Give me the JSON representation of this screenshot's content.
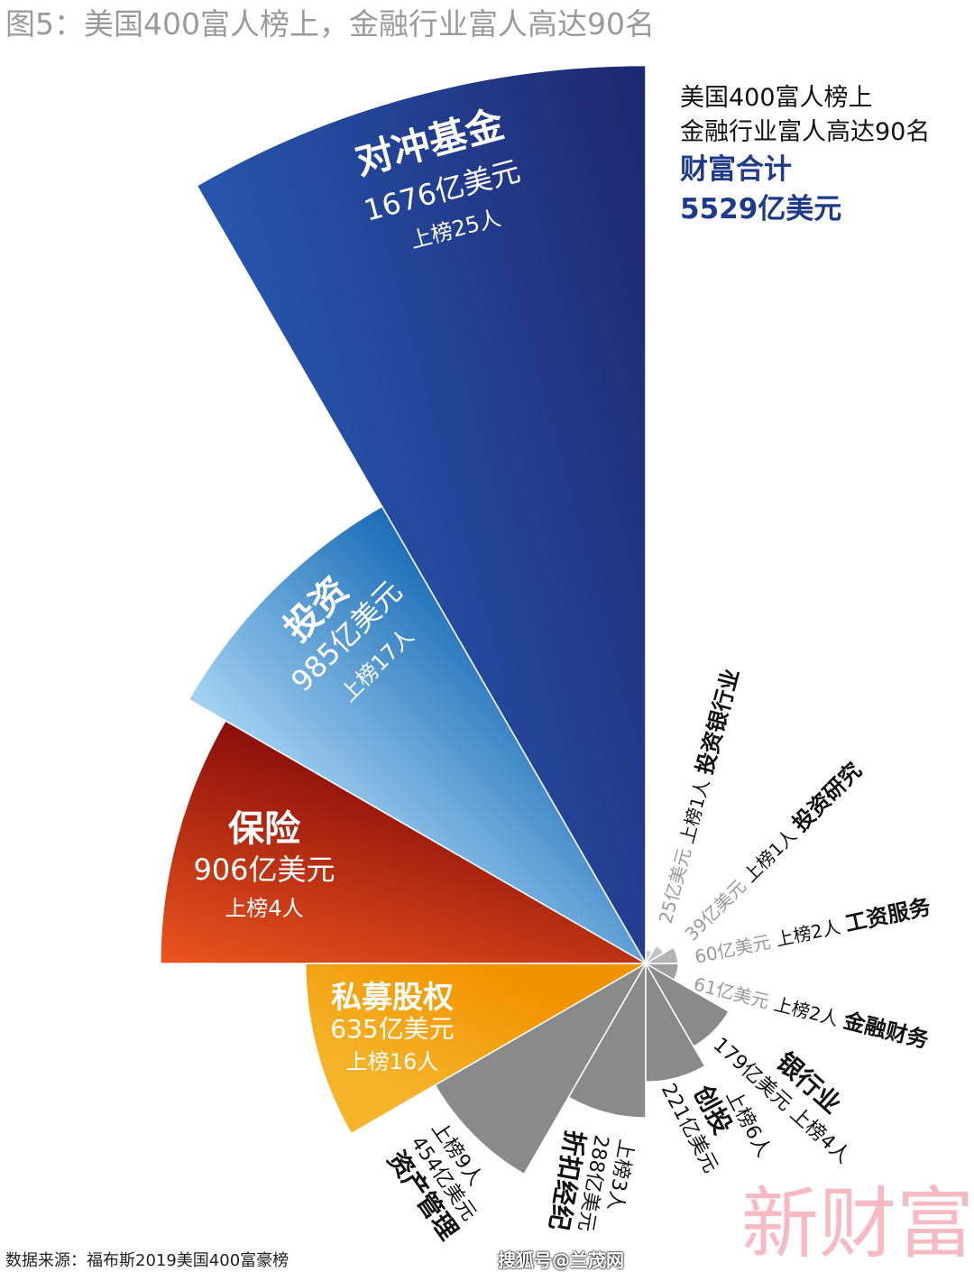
{
  "title": "图5：美国400富人榜上，金融行业富人高达90名",
  "summary": {
    "line1": "美国400富人榜上",
    "line2": "金融行业富人高达90名",
    "line3": "财富合计",
    "line4": "5529亿美元"
  },
  "source": "数据来源：福布斯2019美国400富豪榜",
  "watermark": "新财富",
  "credit": "搜狐号@兰茂网",
  "chart_data": {
    "type": "polar-area",
    "unit": "亿美元",
    "categories": [
      {
        "name": "对冲基金",
        "value": 1676,
        "value_label": "1676亿美元",
        "count_label": "上榜25人",
        "color": [
          "#2756ae",
          "#1f2770"
        ]
      },
      {
        "name": "投资",
        "value": 985,
        "value_label": "985亿美元",
        "count_label": "上榜17人",
        "color": [
          "#a6d3f3",
          "#1a6cb6"
        ]
      },
      {
        "name": "保险",
        "value": 906,
        "value_label": "906亿美元",
        "count_label": "上榜4人",
        "color": [
          "#eb551e",
          "#8a0e0a"
        ]
      },
      {
        "name": "私募股权",
        "value": 635,
        "value_label": "635亿美元",
        "count_label": "上榜16人",
        "color": [
          "#f5b42a",
          "#f19300"
        ]
      },
      {
        "name": "资产管理",
        "value": 454,
        "value_label": "454亿美元",
        "count_label": "上榜9人",
        "color": [
          "#8a8a8a",
          "#8a8a8a"
        ]
      },
      {
        "name": "折扣经纪",
        "value": 288,
        "value_label": "288亿美元",
        "count_label": "上榜3人",
        "color": [
          "#8a8a8a",
          "#8a8a8a"
        ]
      },
      {
        "name": "创投",
        "value": 221,
        "value_label": "221亿美元",
        "count_label": "上榜6人",
        "color": [
          "#8a8a8a",
          "#8a8a8a"
        ]
      },
      {
        "name": "银行业",
        "value": 179,
        "value_label": "179亿美元",
        "count_label": "上榜4人",
        "color": [
          "#8a8a8a",
          "#8a8a8a"
        ]
      },
      {
        "name": "金融财务",
        "value": 61,
        "value_label": "61亿美元",
        "count_label": "上榜2人",
        "color": [
          "#9e9e9e",
          "#9e9e9e"
        ]
      },
      {
        "name": "工资服务",
        "value": 60,
        "value_label": "60亿美元",
        "count_label": "上榜2人",
        "color": [
          "#b4b4b4",
          "#b4b4b4"
        ]
      },
      {
        "name": "投资研究",
        "value": 39,
        "value_label": "39亿美元",
        "count_label": "上榜1人",
        "color": [
          "#c4c4c4",
          "#c4c4c4"
        ]
      },
      {
        "name": "投资银行业",
        "value": 25,
        "value_label": "25亿美元",
        "count_label": "上榜1人",
        "color": [
          "#d0d0d0",
          "#d0d0d0"
        ]
      }
    ]
  }
}
